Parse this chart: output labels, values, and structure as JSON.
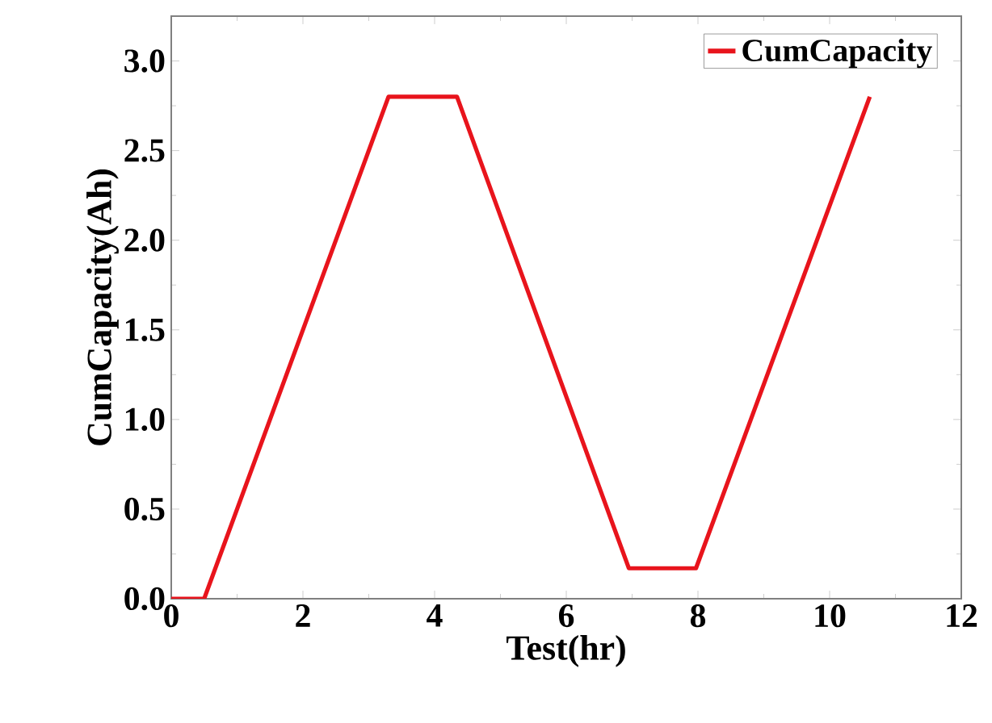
{
  "chart_data": {
    "type": "line",
    "xlabel": "Test(hr)",
    "ylabel": "CumCapacity(Ah)",
    "series": [
      {
        "name": "CumCapacity",
        "color": "#e8141c",
        "x": [
          0,
          0.5,
          3.3,
          4.34,
          6.95,
          7.97,
          10.61
        ],
        "values": [
          0,
          0,
          2.8,
          2.8,
          0.17,
          0.17,
          2.8
        ]
      }
    ],
    "xlim": [
      0,
      12
    ],
    "ylim": [
      0,
      3.25
    ],
    "xticks": [
      0,
      2,
      4,
      6,
      8,
      10,
      12
    ],
    "yticks": [
      {
        "value": 0,
        "label": "0.0"
      },
      {
        "value": 0.5,
        "label": "0.5"
      },
      {
        "value": 1,
        "label": "1.0"
      },
      {
        "value": 1.5,
        "label": "1.5"
      },
      {
        "value": 2,
        "label": "2.0"
      },
      {
        "value": 2.5,
        "label": "2.5"
      },
      {
        "value": 3,
        "label": "3.0"
      }
    ],
    "legend": "top right",
    "grid": false,
    "marker": "none",
    "line_style": "solid"
  }
}
